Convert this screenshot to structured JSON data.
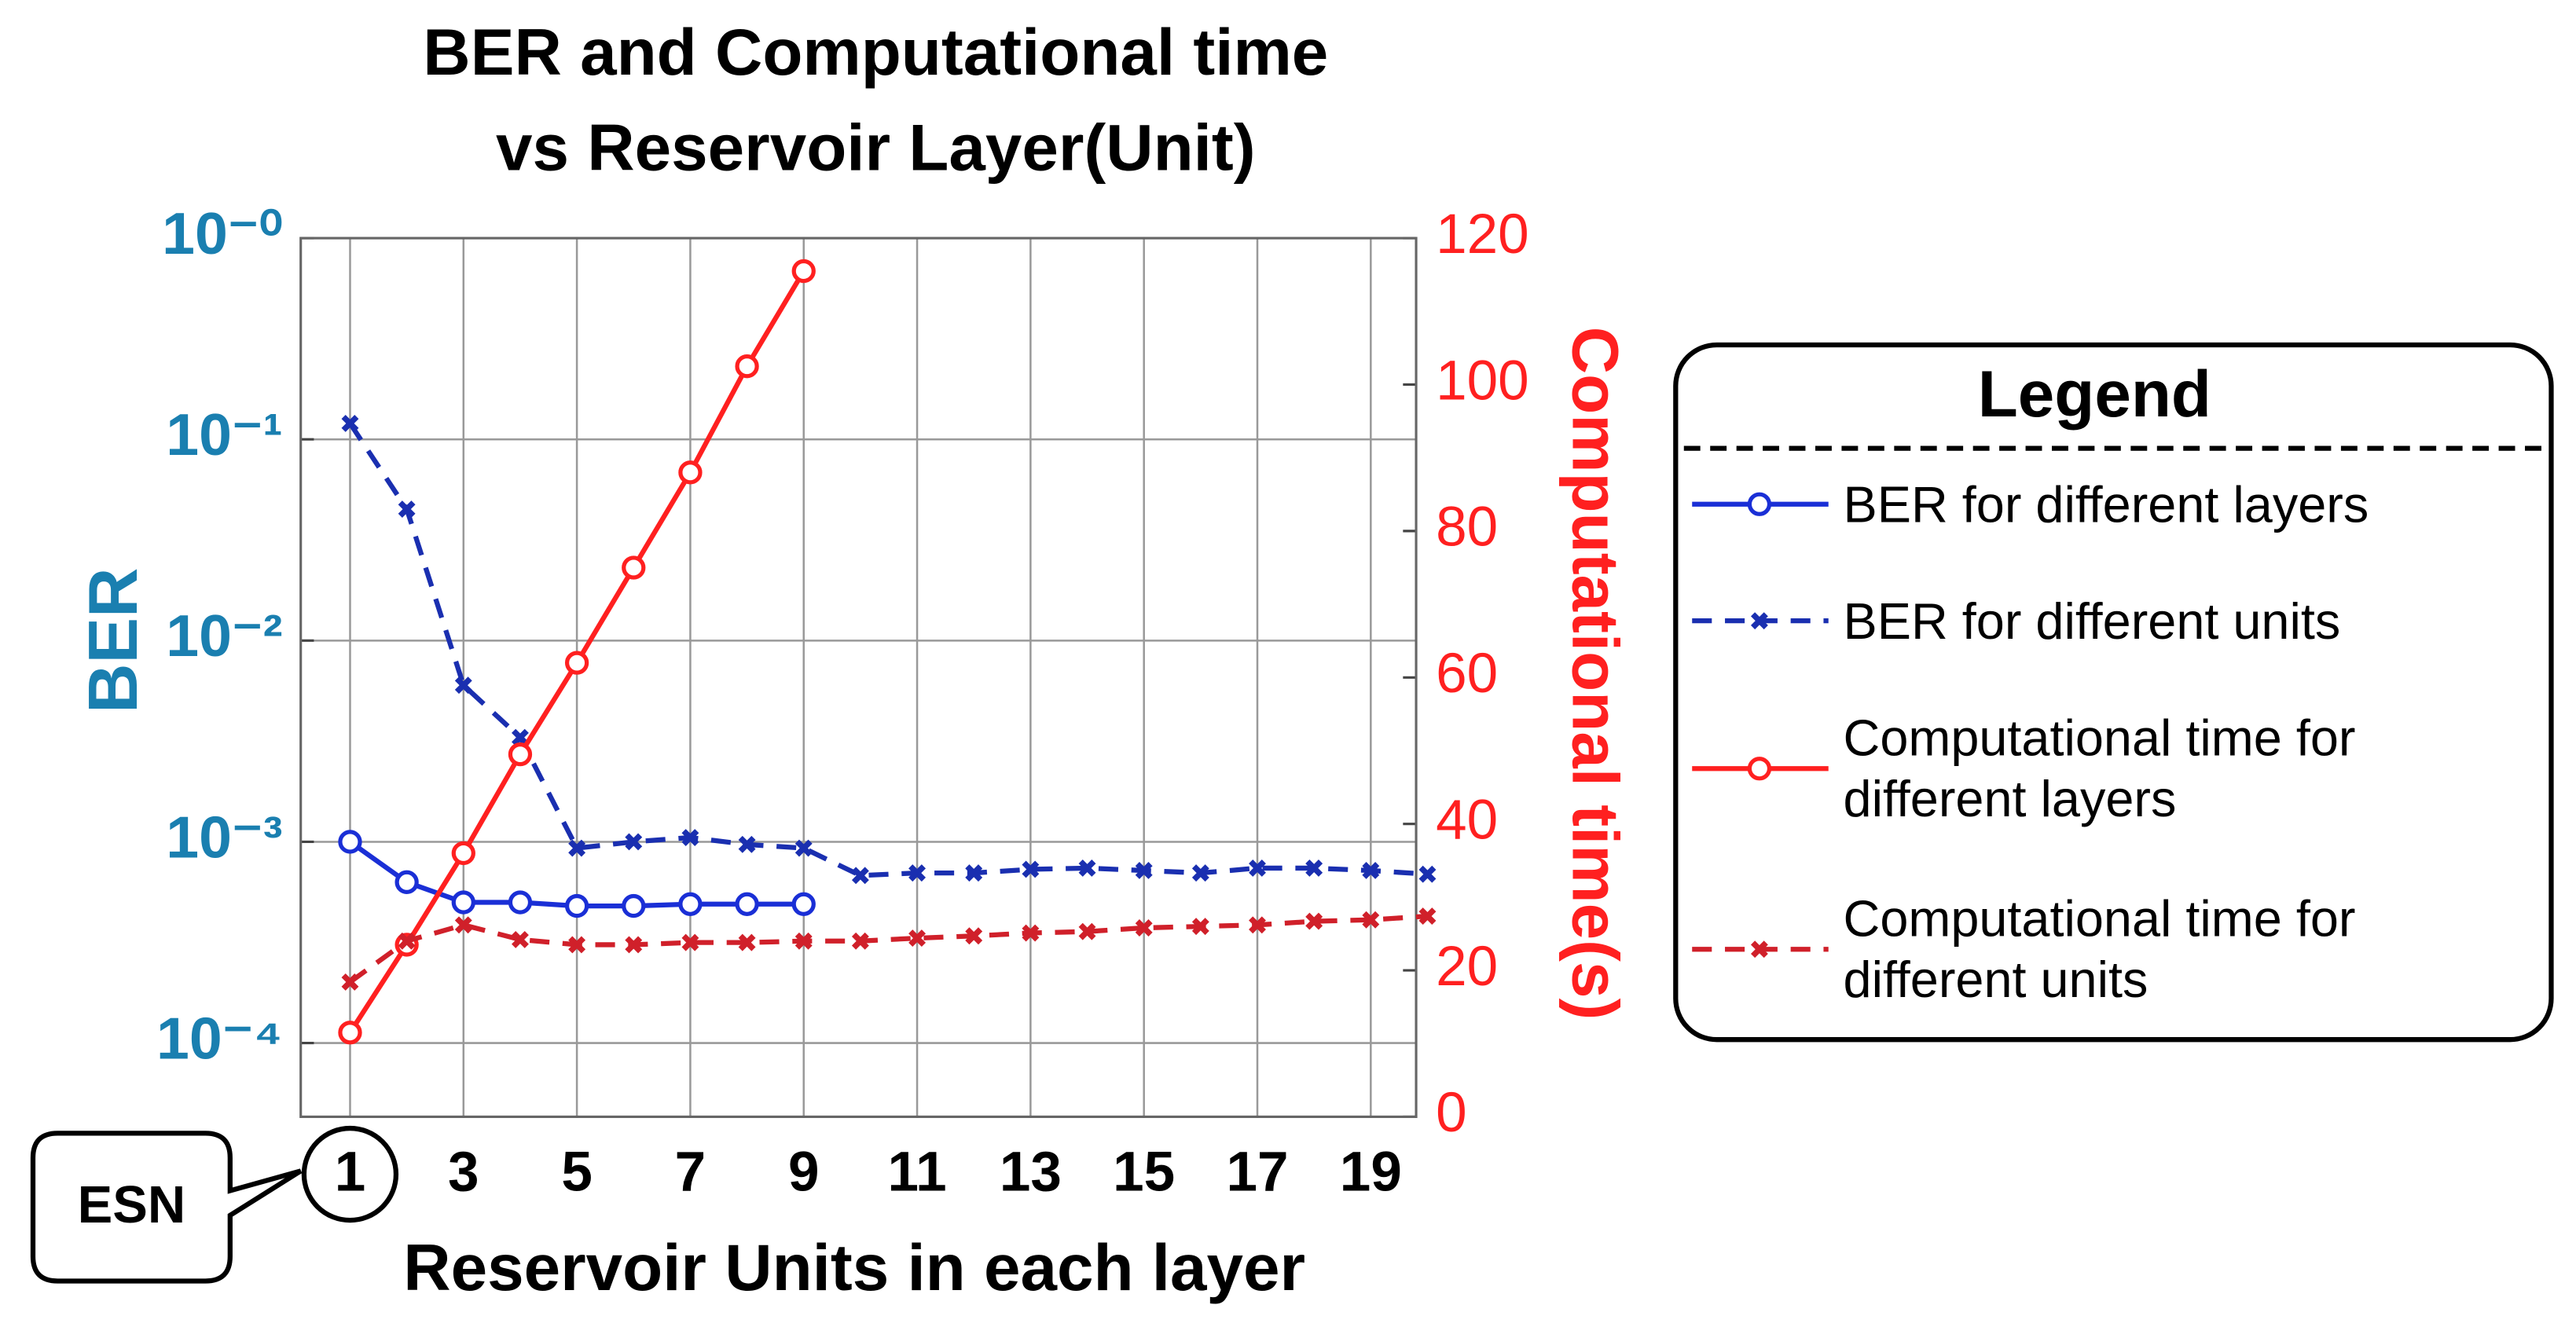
{
  "chart_data": {
    "type": "line",
    "title": "BER and Computational  time vs Reservoir Layer(Unit)",
    "xlabel": "Reservoir Units in each layer",
    "ylabel": "BER",
    "y2label": "Computational time(s)",
    "annotation": "ESN",
    "legend_title": "Legend",
    "x": [
      1,
      2,
      3,
      4,
      5,
      6,
      7,
      8,
      9,
      10,
      11,
      12,
      13,
      14,
      15,
      16,
      17,
      18,
      19,
      20
    ],
    "xlim": [
      0.13,
      19.8
    ],
    "xticks": [
      1,
      3,
      5,
      7,
      9,
      11,
      13,
      15,
      17,
      19
    ],
    "yscale": "log",
    "ylim": [
      4.3e-05,
      1
    ],
    "yticks": [
      {
        "value": 1,
        "label": "10⁻⁰"
      },
      {
        "value": 0.1,
        "label": "10⁻¹"
      },
      {
        "value": 0.01,
        "label": "10⁻²"
      },
      {
        "value": 0.001,
        "label": "10⁻³"
      },
      {
        "value": 0.0001,
        "label": "10⁻⁴"
      }
    ],
    "y2lim": [
      0,
      120
    ],
    "y2ticks": [
      0,
      20,
      40,
      60,
      80,
      100,
      120
    ],
    "grid": true,
    "legend": "right",
    "series": [
      {
        "name": "BER for different layers",
        "color": "#1a2fd6",
        "dash": false,
        "values": [
          0.001,
          0.00063,
          0.0005,
          0.0005,
          0.00048,
          0.00048,
          0.00049,
          0.00049,
          0.00049,
          null,
          null,
          null,
          null,
          null,
          null,
          null,
          null,
          null,
          null,
          null
        ]
      },
      {
        "name": "BER for different units",
        "color": "#1a2fb0",
        "dash": true,
        "values": [
          0.12,
          0.045,
          0.006,
          0.0033,
          0.00093,
          0.001,
          0.00105,
          0.00097,
          0.00093,
          0.00068,
          0.0007,
          0.0007,
          0.00073,
          0.00074,
          0.00072,
          0.0007,
          0.00074,
          0.00074,
          0.00072,
          0.00069
        ]
      },
      {
        "name": "Computational time for different layers",
        "color": "#ff2020",
        "dash": false,
        "axis": "y2",
        "values": [
          11.5,
          23.5,
          36,
          49.5,
          62,
          75,
          88,
          102.5,
          115.5,
          null,
          null,
          null,
          null,
          null,
          null,
          null,
          null,
          null,
          null,
          null
        ]
      },
      {
        "name": "Computational time for different units",
        "color": "#d0202a",
        "dash": true,
        "axis": "y2",
        "values": [
          18.4,
          24,
          26.2,
          24.2,
          23.5,
          23.5,
          23.8,
          23.8,
          24,
          24,
          24.4,
          24.7,
          25.1,
          25.3,
          25.8,
          26,
          26.2,
          26.7,
          26.9,
          27.4
        ]
      }
    ]
  }
}
